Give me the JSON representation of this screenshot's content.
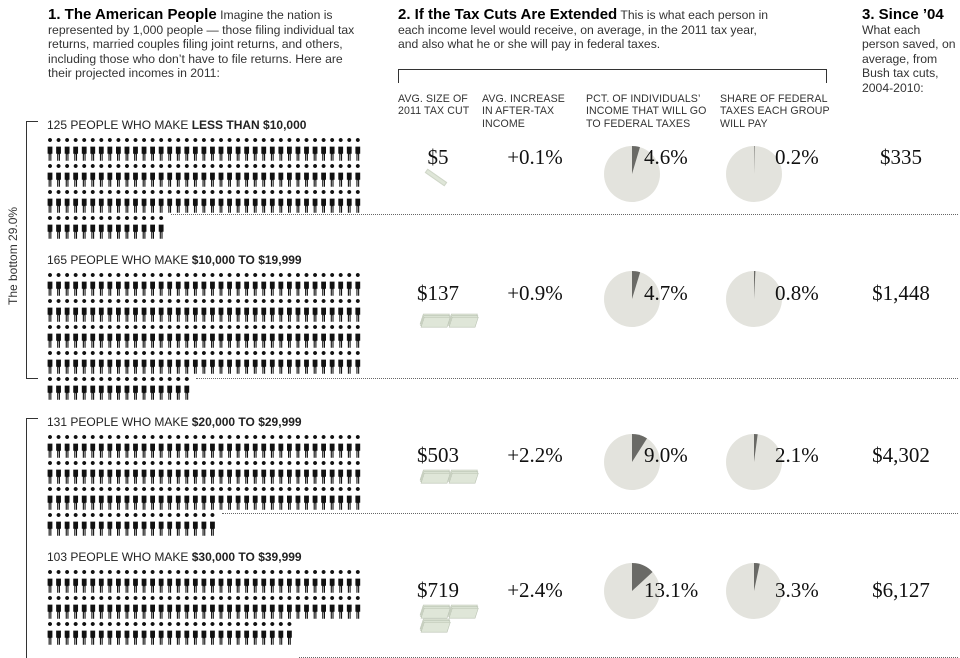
{
  "sections": {
    "s1": {
      "title": "1. The American People",
      "text": "Imagine the nation is represented by 1,000 people — those filing individual tax returns, married couples filing joint returns, and others, including those who don’t have to file returns. Here are their projected incomes in 2011:"
    },
    "s2": {
      "title": "2. If the Tax Cuts Are Extended",
      "text": "This is what each person in each income level would receive, on average, in the 2011 tax year, and also what he or she will pay in federal taxes."
    },
    "s3": {
      "title": "3. Since ’04",
      "text": "What each person saved, on average, from Bush tax cuts, 2004-2010:"
    }
  },
  "columns": {
    "avg_cut": "AVG. SIZE OF 2011 TAX CUT",
    "avg_increase": "AVG. INCREASE IN AFTER-TAX INCOME",
    "pct_income": "PCT. OF INDIVIDUALS’ INCOME THAT WILL GO TO FEDERAL TAXES",
    "share_taxes": "SHARE OF FEDERAL TAXES EACH GROUP WILL PAY"
  },
  "bracket_label": "The bottom 29.0%",
  "groups": [
    {
      "count_text": "125 PEOPLE WHO MAKE",
      "range": "LESS THAN $10,000",
      "people": 125,
      "avg_cut": "$5",
      "increase": "+0.1%",
      "pct_income": 4.6,
      "pct_income_label": "4.6%",
      "share": 0.2,
      "share_label": "0.2%",
      "since04": "$335"
    },
    {
      "count_text": "165 PEOPLE WHO MAKE",
      "range": "$10,000 TO $19,999",
      "people": 165,
      "avg_cut": "$137",
      "increase": "+0.9%",
      "pct_income": 4.7,
      "pct_income_label": "4.7%",
      "share": 0.8,
      "share_label": "0.8%",
      "since04": "$1,448"
    },
    {
      "count_text": "131 PEOPLE WHO MAKE",
      "range": "$20,000 TO $29,999",
      "people": 131,
      "avg_cut": "$503",
      "increase": "+2.2%",
      "pct_income": 9.0,
      "pct_income_label": "9.0%",
      "share": 2.1,
      "share_label": "2.1%",
      "since04": "$4,302"
    },
    {
      "count_text": "103 PEOPLE WHO MAKE",
      "range": "$30,000 TO $39,999",
      "people": 103,
      "avg_cut": "$719",
      "increase": "+2.4%",
      "pct_income": 13.1,
      "pct_income_label": "13.1%",
      "share": 3.3,
      "share_label": "3.3%",
      "since04": "$6,127"
    }
  ],
  "chart_data": {
    "type": "pie",
    "categories": [
      "LESS THAN $10,000",
      "$10,000 TO $19,999",
      "$20,000 TO $29,999",
      "$30,000 TO $39,999"
    ],
    "series": [
      {
        "name": "PCT. OF INDIVIDUALS’ INCOME THAT WILL GO TO FEDERAL TAXES",
        "values": [
          4.6,
          4.7,
          9.0,
          13.1
        ]
      },
      {
        "name": "SHARE OF FEDERAL TAXES EACH GROUP WILL PAY",
        "values": [
          0.2,
          0.8,
          2.1,
          3.3
        ]
      }
    ],
    "people_per_group": [
      125,
      165,
      131,
      103
    ]
  },
  "colors": {
    "pie_bg": "#e3e3dd",
    "pie_slice": "#6a6a66",
    "person": "#111111",
    "money": "#dfe6d8"
  }
}
